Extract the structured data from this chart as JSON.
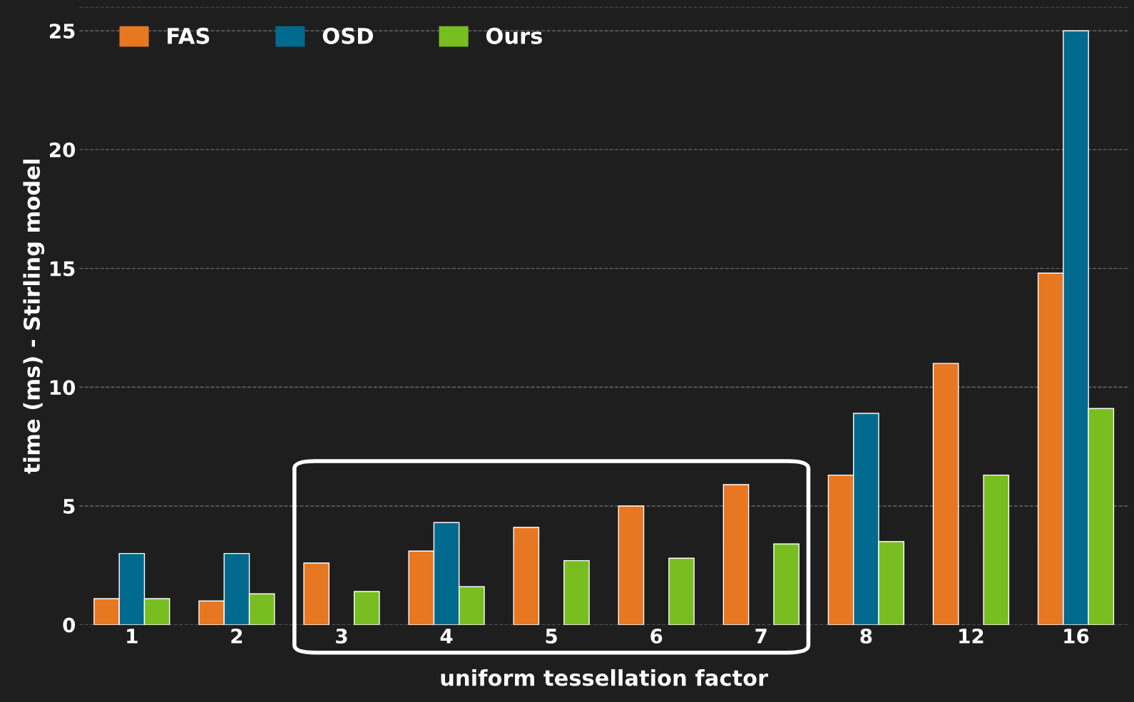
{
  "chart_data": {
    "type": "bar",
    "xlabel": "uniform tessellation factor",
    "ylabel": "time (ms) - Stirling model",
    "categories": [
      "1",
      "2",
      "3",
      "4",
      "5",
      "6",
      "7",
      "8",
      "12",
      "16"
    ],
    "series": [
      {
        "name": "FAS",
        "color": "#e87722",
        "values": [
          1.1,
          1.0,
          2.6,
          3.1,
          4.1,
          5.0,
          5.9,
          6.3,
          11.0,
          14.8
        ]
      },
      {
        "name": "OSD",
        "color": "#006a8e",
        "values": [
          3.0,
          3.0,
          null,
          4.3,
          null,
          null,
          null,
          8.9,
          null,
          25.0
        ]
      },
      {
        "name": "Ours",
        "color": "#78be20",
        "values": [
          1.1,
          1.3,
          1.4,
          1.6,
          2.7,
          2.8,
          3.4,
          3.5,
          6.3,
          9.1
        ]
      }
    ],
    "ylim": [
      0,
      26
    ],
    "yticks": [
      0,
      5,
      10,
      15,
      20,
      25,
      {
        "value": 26,
        "label": null
      }
    ],
    "grid": "y",
    "legend": "top left"
  }
}
